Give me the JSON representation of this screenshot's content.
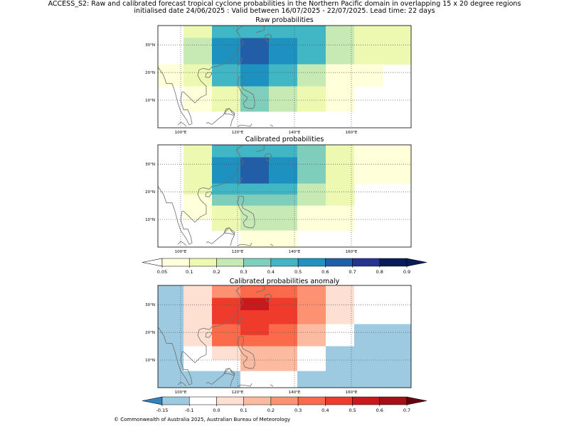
{
  "figure": {
    "title_line1": "ACCESS_S2: Raw and calibrated forecast tropical cyclone probabilities in the Northern Pacific domain in overlapping 15 x 20 degree regions",
    "title_line2": "initialised date 24/06/2025 :  Valid between 16/07/2025 - 22/07/2025. Lead time: 22 days",
    "copyright": "© Commonwealth of Australia 2025, Australian Bureau of Meteorology"
  },
  "chart_data": [
    {
      "type": "heatmap",
      "title": "Raw probabilities",
      "x_tick_labels": [
        "100°E",
        "120°E",
        "140°E",
        "160°E"
      ],
      "y_tick_labels": [
        "10°N",
        "20°N",
        "30°N"
      ],
      "x_ticks": [
        100,
        120,
        140,
        160
      ],
      "y_ticks": [
        10,
        20,
        30
      ],
      "xlim": [
        92,
        181
      ],
      "ylim": [
        0,
        37
      ],
      "grid": true,
      "cell_width_deg": 10,
      "cell_height_deg": 4.5,
      "rows": [
        {
          "y": [
            32.5,
            37
          ],
          "cells": [
            [
              101,
              111,
              0.1
            ],
            [
              111,
              121,
              0.4
            ],
            [
              121,
              131,
              0.4
            ],
            [
              131,
              141,
              0.4
            ],
            [
              141,
              151,
              0.4
            ],
            [
              151,
              161,
              0.2
            ],
            [
              161,
              171,
              0.1
            ],
            [
              171,
              181,
              0.1
            ]
          ]
        },
        {
          "y": [
            28,
            32.5
          ],
          "cells": [
            [
              101,
              111,
              0.2
            ],
            [
              111,
              121,
              0.5
            ],
            [
              121,
              131,
              0.6
            ],
            [
              131,
              141,
              0.5
            ],
            [
              141,
              151,
              0.4
            ],
            [
              151,
              161,
              0.2
            ],
            [
              161,
              171,
              0.1
            ],
            [
              171,
              181,
              0.1
            ]
          ]
        },
        {
          "y": [
            23,
            28
          ],
          "cells": [
            [
              101,
              111,
              0.2
            ],
            [
              111,
              121,
              0.5
            ],
            [
              121,
              131,
              0.6
            ],
            [
              131,
              141,
              0.5
            ],
            [
              141,
              151,
              0.4
            ],
            [
              151,
              161,
              0.2
            ],
            [
              161,
              171,
              0.1
            ],
            [
              171,
              181,
              0.1
            ]
          ]
        },
        {
          "y": [
            19,
            23
          ],
          "cells": [
            [
              92,
              101,
              0.05
            ],
            [
              101,
              111,
              0.1
            ],
            [
              111,
              121,
              0.4
            ],
            [
              121,
              131,
              0.5
            ],
            [
              131,
              141,
              0.4
            ],
            [
              141,
              151,
              0.2
            ],
            [
              151,
              161,
              0.05
            ],
            [
              161,
              171,
              0.05
            ]
          ]
        },
        {
          "y": [
            15,
            19
          ],
          "cells": [
            [
              92,
              101,
              0.05
            ],
            [
              101,
              111,
              0.1
            ],
            [
              111,
              121,
              0.4
            ],
            [
              121,
              131,
              0.5
            ],
            [
              131,
              141,
              0.4
            ],
            [
              141,
              151,
              0.2
            ],
            [
              151,
              161,
              0.05
            ],
            [
              161,
              171,
              0.05
            ]
          ]
        },
        {
          "y": [
            10,
            15
          ],
          "cells": [
            [
              101,
              111,
              0.05
            ],
            [
              111,
              121,
              0.1
            ],
            [
              121,
              131,
              0.3
            ],
            [
              131,
              141,
              0.2
            ],
            [
              141,
              151,
              0.1
            ],
            [
              151,
              161,
              0.05
            ]
          ]
        },
        {
          "y": [
            6,
            10
          ],
          "cells": [
            [
              101,
              111,
              0.05
            ],
            [
              111,
              121,
              0.1
            ],
            [
              121,
              131,
              0.3
            ],
            [
              131,
              141,
              0.2
            ],
            [
              141,
              151,
              0.1
            ],
            [
              151,
              161,
              0.05
            ]
          ]
        }
      ]
    },
    {
      "type": "heatmap",
      "title": "Calibrated probabilities",
      "x_tick_labels": [
        "100°E",
        "120°E",
        "140°E",
        "160°E"
      ],
      "y_tick_labels": [
        "10°N",
        "20°N",
        "30°N"
      ],
      "x_ticks": [
        100,
        120,
        140,
        160
      ],
      "y_ticks": [
        10,
        20,
        30
      ],
      "xlim": [
        92,
        181
      ],
      "ylim": [
        0,
        37
      ],
      "grid": true,
      "cell_width_deg": 10,
      "cell_height_deg": 4.5,
      "rows": [
        {
          "y": [
            32.5,
            37
          ],
          "cells": [
            [
              101,
              111,
              0.1
            ],
            [
              111,
              121,
              0.4
            ],
            [
              121,
              131,
              0.4
            ],
            [
              131,
              141,
              0.4
            ],
            [
              141,
              151,
              0.3
            ],
            [
              151,
              161,
              0.1
            ],
            [
              161,
              171,
              0.05
            ],
            [
              171,
              181,
              0.05
            ]
          ]
        },
        {
          "y": [
            28,
            32.5
          ],
          "cells": [
            [
              101,
              111,
              0.1
            ],
            [
              111,
              121,
              0.5
            ],
            [
              121,
              131,
              0.6
            ],
            [
              131,
              141,
              0.5
            ],
            [
              141,
              151,
              0.3
            ],
            [
              151,
              161,
              0.1
            ],
            [
              161,
              171,
              0.05
            ],
            [
              171,
              181,
              0.05
            ]
          ]
        },
        {
          "y": [
            23,
            28
          ],
          "cells": [
            [
              101,
              111,
              0.1
            ],
            [
              111,
              121,
              0.5
            ],
            [
              121,
              131,
              0.6
            ],
            [
              131,
              141,
              0.5
            ],
            [
              141,
              151,
              0.3
            ],
            [
              151,
              161,
              0.1
            ],
            [
              161,
              171,
              0.05
            ],
            [
              171,
              181,
              0.05
            ]
          ]
        },
        {
          "y": [
            19,
            23
          ],
          "cells": [
            [
              101,
              111,
              0.1
            ],
            [
              111,
              121,
              0.4
            ],
            [
              121,
              131,
              0.4
            ],
            [
              131,
              141,
              0.4
            ],
            [
              141,
              151,
              0.2
            ],
            [
              151,
              161,
              0.1
            ]
          ]
        },
        {
          "y": [
            15,
            19
          ],
          "cells": [
            [
              101,
              111,
              0.05
            ],
            [
              111,
              121,
              0.3
            ],
            [
              121,
              131,
              0.3
            ],
            [
              131,
              141,
              0.3
            ],
            [
              141,
              151,
              0.2
            ],
            [
              151,
              161,
              0.1
            ]
          ]
        },
        {
          "y": [
            10,
            15
          ],
          "cells": [
            [
              101,
              111,
              0.05
            ],
            [
              111,
              121,
              0.1
            ],
            [
              121,
              131,
              0.2
            ],
            [
              131,
              141,
              0.2
            ],
            [
              141,
              151,
              0.05
            ],
            [
              151,
              161,
              0.05
            ]
          ]
        },
        {
          "y": [
            6,
            10
          ],
          "cells": [
            [
              111,
              121,
              0.1
            ],
            [
              121,
              131,
              0.2
            ],
            [
              131,
              141,
              0.2
            ],
            [
              141,
              151,
              0.05
            ],
            [
              151,
              161,
              0.05
            ]
          ]
        },
        {
          "y": [
            0,
            6
          ],
          "cells": [
            [
              121,
              131,
              0.05
            ],
            [
              131,
              141,
              0.05
            ]
          ]
        }
      ]
    },
    {
      "type": "heatmap",
      "title": "Calibrated probabilities anomaly",
      "x_tick_labels": [
        "100°E",
        "120°E",
        "140°E",
        "160°E"
      ],
      "y_tick_labels": [
        "10°N",
        "20°N",
        "30°N"
      ],
      "x_ticks": [
        100,
        120,
        140,
        160
      ],
      "y_ticks": [
        10,
        20,
        30
      ],
      "xlim": [
        92,
        181
      ],
      "ylim": [
        0,
        37
      ],
      "grid": true,
      "cell_width_deg": 10,
      "cell_height_deg": 4.5,
      "rows": [
        {
          "y": [
            32.5,
            37
          ],
          "cells": [
            [
              92,
              101,
              -0.15
            ],
            [
              101,
              111,
              0.0
            ],
            [
              111,
              121,
              0.2
            ],
            [
              121,
              131,
              0.3
            ],
            [
              131,
              141,
              0.3
            ],
            [
              141,
              151,
              0.2
            ],
            [
              151,
              161,
              0.0
            ],
            [
              161,
              181,
              -0.1
            ]
          ]
        },
        {
          "y": [
            28,
            32.5
          ],
          "cells": [
            [
              92,
              101,
              -0.15
            ],
            [
              101,
              111,
              0.0
            ],
            [
              111,
              121,
              0.4
            ],
            [
              121,
              131,
              0.5
            ],
            [
              131,
              141,
              0.4
            ],
            [
              141,
              151,
              0.2
            ],
            [
              151,
              161,
              0.0
            ],
            [
              161,
              181,
              -0.1
            ]
          ]
        },
        {
          "y": [
            23,
            28
          ],
          "cells": [
            [
              92,
              101,
              -0.15
            ],
            [
              101,
              111,
              0.0
            ],
            [
              111,
              121,
              0.4
            ],
            [
              121,
              131,
              0.4
            ],
            [
              131,
              141,
              0.4
            ],
            [
              141,
              151,
              0.2
            ],
            [
              151,
              161,
              0.0
            ],
            [
              161,
              181,
              -0.1
            ]
          ]
        },
        {
          "y": [
            19,
            23
          ],
          "cells": [
            [
              92,
              101,
              -0.15
            ],
            [
              101,
              111,
              0.0
            ],
            [
              111,
              121,
              0.3
            ],
            [
              121,
              131,
              0.4
            ],
            [
              131,
              141,
              0.3
            ],
            [
              141,
              151,
              0.1
            ],
            [
              151,
              161,
              -0.1
            ],
            [
              161,
              181,
              -0.15
            ]
          ]
        },
        {
          "y": [
            15,
            19
          ],
          "cells": [
            [
              92,
              101,
              -0.15
            ],
            [
              101,
              111,
              0.0
            ],
            [
              111,
              121,
              0.3
            ],
            [
              121,
              131,
              0.3
            ],
            [
              131,
              141,
              0.3
            ],
            [
              141,
              151,
              0.1
            ],
            [
              151,
              161,
              -0.1
            ],
            [
              161,
              181,
              -0.15
            ]
          ]
        },
        {
          "y": [
            10,
            15
          ],
          "cells": [
            [
              92,
              101,
              -0.15
            ],
            [
              101,
              111,
              -0.1
            ],
            [
              111,
              121,
              0.0
            ],
            [
              121,
              131,
              0.1
            ],
            [
              131,
              141,
              0.1
            ],
            [
              141,
              151,
              -0.1
            ],
            [
              151,
              181,
              -0.15
            ]
          ]
        },
        {
          "y": [
            6,
            10
          ],
          "cells": [
            [
              92,
              101,
              -0.15
            ],
            [
              101,
              111,
              -0.1
            ],
            [
              111,
              121,
              -0.1
            ],
            [
              121,
              131,
              0.1
            ],
            [
              131,
              141,
              0.1
            ],
            [
              141,
              151,
              -0.1
            ],
            [
              151,
              181,
              -0.15
            ]
          ]
        },
        {
          "y": [
            0,
            6
          ],
          "cells": [
            [
              92,
              111,
              -0.15
            ],
            [
              111,
              121,
              -0.15
            ],
            [
              121,
              141,
              -0.1
            ],
            [
              141,
              181,
              -0.15
            ]
          ]
        }
      ]
    }
  ],
  "colorbars": {
    "probability": {
      "tick_labels": [
        "0.05",
        "0.1",
        "0.2",
        "0.3",
        "0.4",
        "0.5",
        "0.6",
        "0.7",
        "0.8",
        "0.9"
      ],
      "colors": [
        "#ffffd9",
        "#edf8b1",
        "#c7e9b4",
        "#7fcdbb",
        "#41b6c4",
        "#1d91c0",
        "#225ea8",
        "#253494",
        "#081d58"
      ],
      "under_color": "#ffffff",
      "over_color": "#081d58"
    },
    "anomaly": {
      "tick_labels": [
        "-0.15",
        "-0.1",
        "0.0",
        "0.1",
        "0.2",
        "0.3",
        "0.4",
        "0.5",
        "0.6",
        "0.7"
      ],
      "colors": [
        "#9ecae1",
        "#ffffff",
        "#fee0d2",
        "#fcbba1",
        "#fc9272",
        "#fb6a4a",
        "#ef3b2c",
        "#cb181d",
        "#a50f15"
      ],
      "under_color": "#3182bd",
      "over_color": "#67000d"
    }
  }
}
